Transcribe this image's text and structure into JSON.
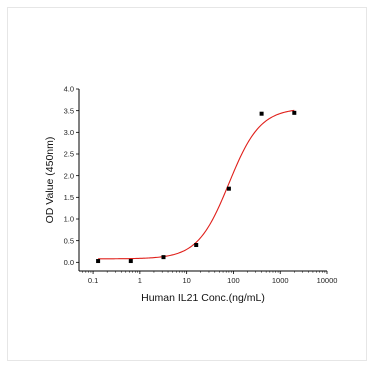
{
  "chart_data": {
    "type": "scatter",
    "xlabel": "Human IL21 Conc.(ng/mL)",
    "ylabel": "OD Value (450nm)",
    "xscale": "log",
    "xlim": [
      0.05,
      10000
    ],
    "ylim": [
      -0.2,
      4.0
    ],
    "x_ticks": [
      {
        "value": 0.1,
        "label": "0.1"
      },
      {
        "value": 1,
        "label": "1"
      },
      {
        "value": 10,
        "label": "10"
      },
      {
        "value": 100,
        "label": "100"
      },
      {
        "value": 1000,
        "label": "1000"
      },
      {
        "value": 10000,
        "label": "10000"
      }
    ],
    "y_ticks": [
      {
        "value": 0.0,
        "label": "0.0"
      },
      {
        "value": 0.5,
        "label": "0.5"
      },
      {
        "value": 1.0,
        "label": "1.0"
      },
      {
        "value": 1.5,
        "label": "1.5"
      },
      {
        "value": 2.0,
        "label": "2.0"
      },
      {
        "value": 2.5,
        "label": "2.5"
      },
      {
        "value": 3.0,
        "label": "3.0"
      },
      {
        "value": 3.5,
        "label": "3.5"
      },
      {
        "value": 4.0,
        "label": "4.0"
      }
    ],
    "series": [
      {
        "marker": "square",
        "color": "#000000",
        "points": [
          {
            "x": 0.128,
            "y": 0.03
          },
          {
            "x": 0.64,
            "y": 0.03
          },
          {
            "x": 3.2,
            "y": 0.12
          },
          {
            "x": 16,
            "y": 0.4
          },
          {
            "x": 80,
            "y": 1.7
          },
          {
            "x": 400,
            "y": 3.43
          },
          {
            "x": 2000,
            "y": 3.45
          }
        ]
      }
    ],
    "fit": {
      "model": "4PL",
      "color": "#e0201b",
      "bottom": 0.08,
      "top": 3.56,
      "ec50": 80,
      "hill": 1.3,
      "x_range": [
        0.128,
        2000
      ]
    },
    "grid": false,
    "legend": "none"
  }
}
